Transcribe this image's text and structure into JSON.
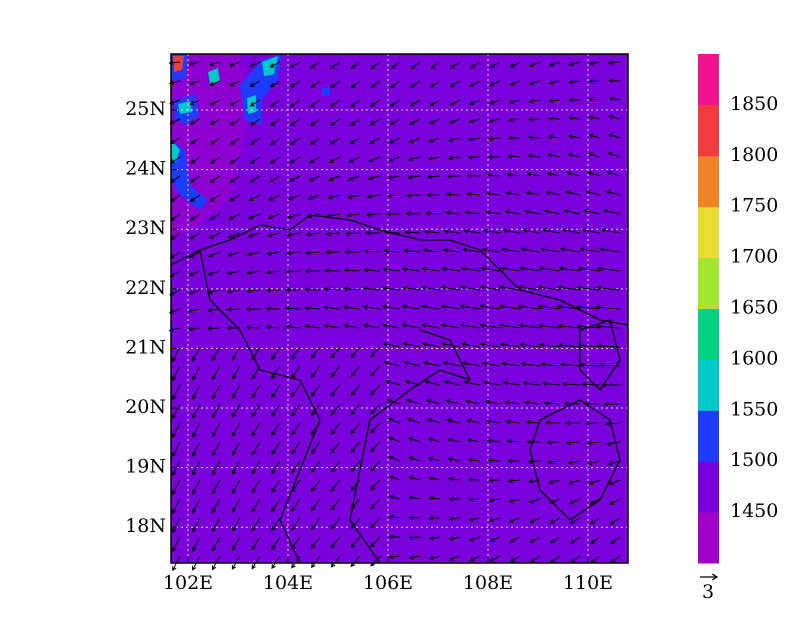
{
  "chart_data": {
    "type": "contour-map",
    "xlim": [
      101.66,
      110.8
    ],
    "ylim": [
      17.4,
      25.94
    ],
    "xticks": [
      {
        "value": 102,
        "label": "102E"
      },
      {
        "value": 104,
        "label": "104E"
      },
      {
        "value": 106,
        "label": "106E"
      },
      {
        "value": 108,
        "label": "108E"
      },
      {
        "value": 110,
        "label": "110E"
      }
    ],
    "yticks": [
      {
        "value": 18,
        "label": "18N"
      },
      {
        "value": 19,
        "label": "19N"
      },
      {
        "value": 20,
        "label": "20N"
      },
      {
        "value": 21,
        "label": "21N"
      },
      {
        "value": 22,
        "label": "22N"
      },
      {
        "value": 23,
        "label": "23N"
      },
      {
        "value": 24,
        "label": "24N"
      },
      {
        "value": 25,
        "label": "25N"
      }
    ],
    "grid": true,
    "colorbar_levels": [
      1450,
      1500,
      1550,
      1600,
      1650,
      1700,
      1750,
      1800,
      1850
    ],
    "colorbar_colors": [
      "#a000c8",
      "#7800dc",
      "#1e3cff",
      "#00c8c8",
      "#00d282",
      "#a0e632",
      "#e6dc32",
      "#f08228",
      "#f03c3c",
      "#f0148c"
    ],
    "reference_vector_label": "3"
  }
}
